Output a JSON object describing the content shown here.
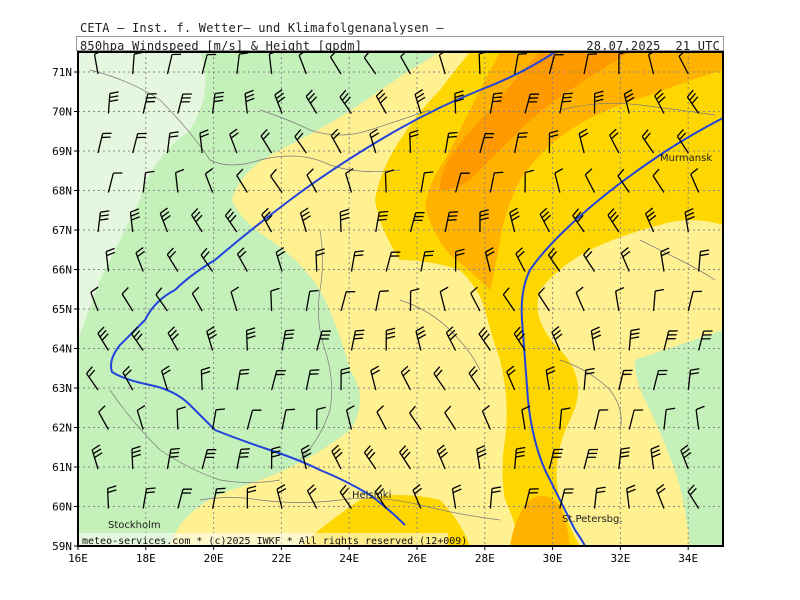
{
  "header": {
    "line1": "CETA — Inst. f. Wetter— und Klimafolgenanalysen —",
    "line2": "850hpa_Windspeed_[m/s]_&_Height_[gpdm]",
    "date": "28.07.2025  21 UTC"
  },
  "axes": {
    "lat_labels": [
      "71N",
      "70N",
      "69N",
      "68N",
      "67N",
      "66N",
      "65N",
      "64N",
      "63N",
      "62N",
      "61N",
      "60N",
      "59N"
    ],
    "lon_labels": [
      "16E",
      "18E",
      "20E",
      "22E",
      "24E",
      "26E",
      "28E",
      "30E",
      "32E",
      "34E"
    ]
  },
  "places": {
    "murmansk": "Murmansk",
    "helsinki": "Helsinki",
    "stockholm": "Stockholm",
    "st_petersburg": "St.Petersbg."
  },
  "credit": "meteo-services.com * (c)2025 IWKF * All rights reserved (12+009)",
  "colors": {
    "very_light_green": "#e6f7df",
    "light_green": "#c4f0b9",
    "pale_yellow": "#fff091",
    "yellow": "#ffd700",
    "orange": "#ffb300",
    "dark_orange": "#ff9900",
    "contour": "#2244dd",
    "grid": "#888888"
  }
}
